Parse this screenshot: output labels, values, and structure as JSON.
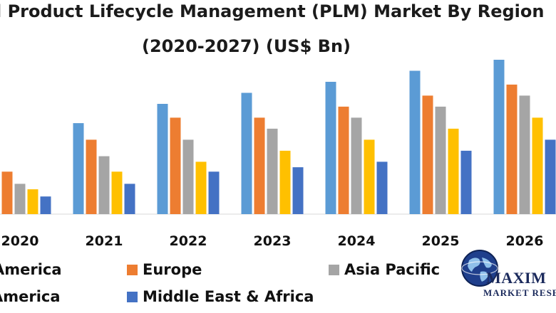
{
  "title": {
    "line1": "l Product Lifecycle Management (PLM) Market By Region",
    "line2": "(2020-2027) (US$ Bn)"
  },
  "colors": {
    "North America": "#5b9bd5",
    "Europe": "#ed7d31",
    "Asia Pacific": "#a5a5a5",
    "South America": "#ffc000",
    "Middle East & Africa": "#4472c4"
  },
  "legend": [
    {
      "label": "America",
      "color": "#5b9bd5"
    },
    {
      "label": "Europe",
      "color": "#ed7d31"
    },
    {
      "label": "Asia Pacific",
      "color": "#a5a5a5"
    },
    {
      "label": "America",
      "color": "#ffc000"
    },
    {
      "label": "Middle East & Africa",
      "color": "#4472c4"
    }
  ],
  "logo": {
    "line1": "MAXIM",
    "line2": "MARKET RESE",
    "icon": "globe-icon"
  },
  "chart_data": {
    "type": "bar",
    "title": "l Product Lifecycle Management (PLM) Market By Region (2020-2027) (US$ Bn)",
    "categories": [
      "2020",
      "2021",
      "2022",
      "2023",
      "2024",
      "2025",
      "2026"
    ],
    "ylim": [
      0,
      28
    ],
    "grid": false,
    "legend_position": "bottom",
    "series": [
      {
        "name": "America",
        "values": [
          11.5,
          16.5,
          20.0,
          22.0,
          24.0,
          26.0,
          28.0
        ]
      },
      {
        "name": "Europe",
        "values": [
          7.7,
          13.5,
          17.5,
          17.5,
          19.5,
          21.5,
          23.5
        ]
      },
      {
        "name": "Asia Pacific",
        "values": [
          5.5,
          10.5,
          13.5,
          15.5,
          17.5,
          19.5,
          21.5
        ]
      },
      {
        "name": "America",
        "values": [
          4.5,
          7.7,
          9.5,
          11.5,
          13.5,
          15.5,
          17.5
        ]
      },
      {
        "name": "Middle East & Africa",
        "values": [
          3.2,
          5.5,
          7.7,
          8.5,
          9.5,
          11.5,
          13.5
        ]
      }
    ]
  }
}
